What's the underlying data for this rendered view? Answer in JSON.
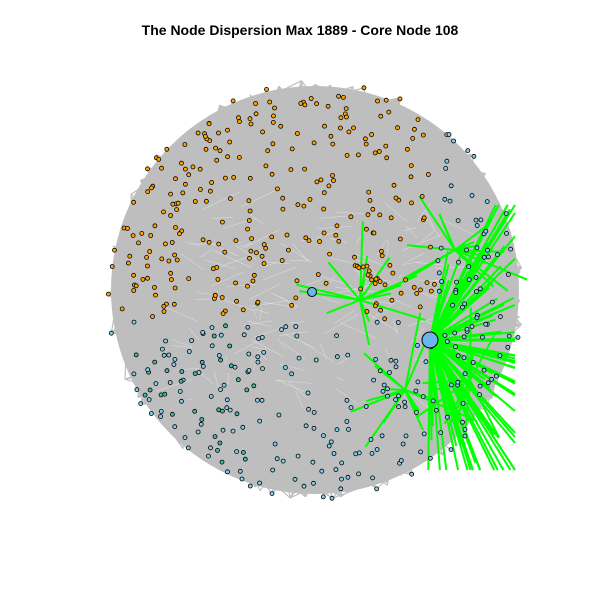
{
  "title": "The Node Dispersion Max 1889 - Core Node 108",
  "colors": {
    "background": "#ffffff",
    "edge_gray": "#bebebe",
    "edge_light": "#e8e8e8",
    "highlight_edge": "#00ff00",
    "node_orange": "#ffa500",
    "node_blue": "#87ceeb",
    "node_teal": "#48b8a8",
    "node_outline": "#000000",
    "core_node": "#6cb4ee"
  }
}
